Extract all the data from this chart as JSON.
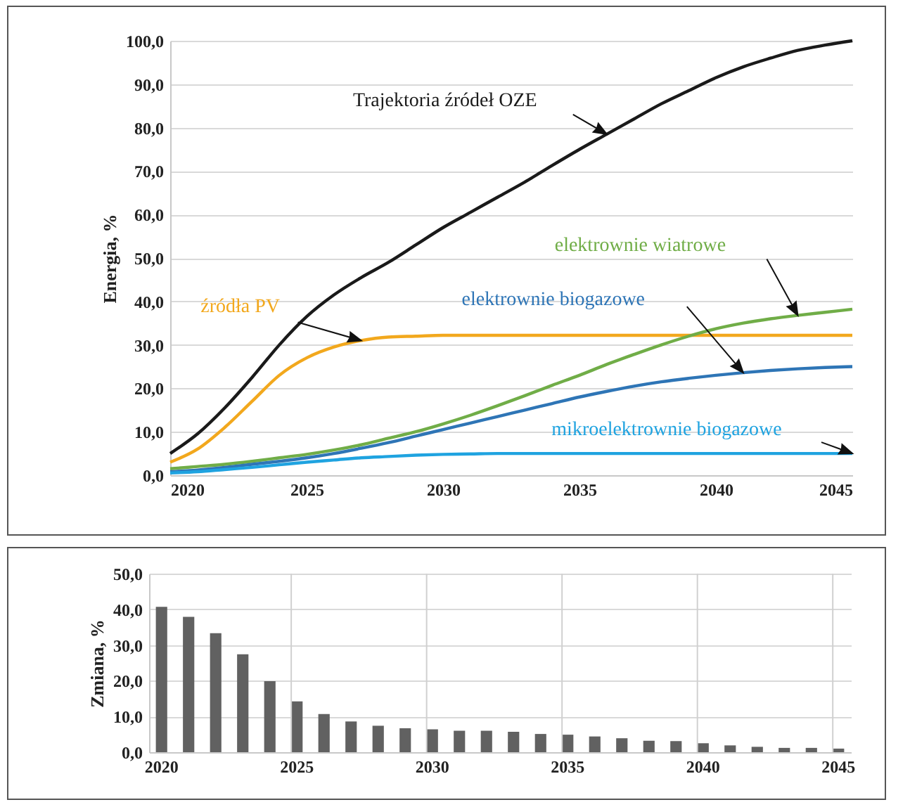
{
  "chart_data": [
    {
      "type": "line",
      "ylabel": "Energia, %",
      "grid": "y",
      "x": [
        2020,
        2021,
        2022,
        2023,
        2024,
        2025,
        2026,
        2027,
        2028,
        2029,
        2030,
        2031,
        2032,
        2033,
        2034,
        2035,
        2036,
        2037,
        2038,
        2039,
        2040,
        2041,
        2042,
        2043,
        2044,
        2045
      ],
      "xlim": [
        2020,
        2045
      ],
      "xticks": [
        2020,
        2025,
        2030,
        2035,
        2040,
        2045
      ],
      "ylim": [
        0,
        100
      ],
      "yticks": [
        {
          "value": 0,
          "label": "0,0"
        },
        {
          "value": 10,
          "label": "10,0"
        },
        {
          "value": 20,
          "label": "20,0"
        },
        {
          "value": 30,
          "label": "30,0"
        },
        {
          "value": 40,
          "label": "40,0"
        },
        {
          "value": 50,
          "label": "50,0"
        },
        {
          "value": 60,
          "label": "60,0"
        },
        {
          "value": 70,
          "label": "70,0"
        },
        {
          "value": 80,
          "label": "80,0"
        },
        {
          "value": 90,
          "label": "90,0"
        },
        {
          "value": 100,
          "label": "100,0"
        }
      ],
      "series": [
        {
          "name": "Trajektoria źródeł OZE",
          "color": "#1a1a1a",
          "values": [
            5,
            9.5,
            15.5,
            22.5,
            30,
            36.5,
            41.5,
            45.5,
            49,
            53,
            57,
            60.5,
            64,
            67.5,
            71.3,
            75,
            78.5,
            82,
            85.5,
            88.5,
            91.5,
            94,
            96,
            97.8,
            99,
            100
          ]
        },
        {
          "name": "źródła PV",
          "color": "#f2a81d",
          "values": [
            3,
            6,
            11,
            17,
            23,
            27,
            29.5,
            31,
            31.8,
            32,
            32.2,
            32.2,
            32.2,
            32.2,
            32.2,
            32.2,
            32.2,
            32.2,
            32.2,
            32.2,
            32.2,
            32.2,
            32.2,
            32.2,
            32.2,
            32.2
          ]
        },
        {
          "name": "elektrownie wiatrowe",
          "color": "#70ad47",
          "values": [
            1.5,
            2,
            2.5,
            3.2,
            4,
            4.8,
            5.8,
            7,
            8.5,
            10,
            11.8,
            13.8,
            16,
            18.3,
            20.7,
            23,
            25.5,
            27.8,
            30,
            32,
            33.7,
            35,
            36,
            36.8,
            37.5,
            38.2
          ]
        },
        {
          "name": "elektrownie biogazowe",
          "color": "#2e75b6",
          "values": [
            0.8,
            1.2,
            1.8,
            2.5,
            3.2,
            4,
            5,
            6.2,
            7.5,
            9,
            10.5,
            12,
            13.5,
            15,
            16.5,
            18,
            19.3,
            20.5,
            21.5,
            22.3,
            23,
            23.6,
            24.1,
            24.5,
            24.8,
            25
          ]
        },
        {
          "name": "mikroelektrownie biogazowe",
          "color": "#1fa3e0",
          "values": [
            0.5,
            0.8,
            1.3,
            1.8,
            2.4,
            3,
            3.5,
            4,
            4.3,
            4.6,
            4.8,
            4.9,
            5,
            5,
            5,
            5,
            5,
            5,
            5,
            5,
            5,
            5,
            5,
            5,
            5,
            5
          ]
        }
      ]
    },
    {
      "type": "bar",
      "ylabel": "Zmiana, %",
      "grid": true,
      "color": "#616161",
      "categories": [
        "2020",
        null,
        null,
        null,
        null,
        "2025",
        null,
        null,
        null,
        null,
        "2030",
        null,
        null,
        null,
        null,
        "2035",
        null,
        null,
        null,
        null,
        "2040",
        null,
        null,
        null,
        null,
        "2045"
      ],
      "values": [
        40.7,
        37.9,
        33.3,
        27.4,
        19.9,
        14.2,
        10.7,
        8.6,
        7.4,
        6.7,
        6.4,
        6.0,
        6.0,
        5.7,
        5.1,
        4.9,
        4.4,
        3.9,
        3.2,
        3.1,
        2.5,
        1.9,
        1.5,
        1.2,
        1.2,
        1.0
      ],
      "ylim": [
        0,
        50
      ],
      "yticks": [
        {
          "value": 0,
          "label": "0,0"
        },
        {
          "value": 10,
          "label": "10,0"
        },
        {
          "value": 20,
          "label": "20,0"
        },
        {
          "value": 30,
          "label": "30,0"
        },
        {
          "value": 40,
          "label": "40,0"
        },
        {
          "value": 50,
          "label": "50,0"
        }
      ]
    }
  ]
}
